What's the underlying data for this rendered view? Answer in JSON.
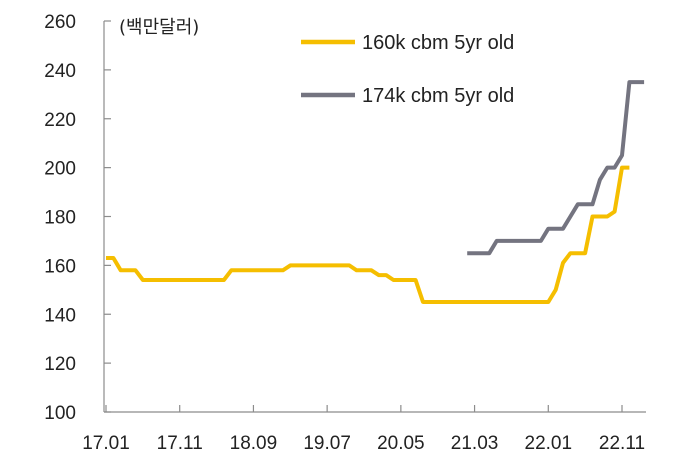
{
  "chart_data": {
    "type": "line",
    "unit_label": "(백만달러)",
    "ylim": [
      100,
      260
    ],
    "yticks": [
      100,
      120,
      140,
      160,
      180,
      200,
      220,
      240,
      260
    ],
    "xlim": [
      0,
      71
    ],
    "xticks": [
      {
        "label": "17.01",
        "at": 0
      },
      {
        "label": "17.11",
        "at": 10
      },
      {
        "label": "18.09",
        "at": 20
      },
      {
        "label": "19.07",
        "at": 30
      },
      {
        "label": "20.05",
        "at": 40
      },
      {
        "label": "21.03",
        "at": 50
      },
      {
        "label": "22.01",
        "at": 60
      },
      {
        "label": "22.11",
        "at": 70
      }
    ],
    "legend_position": "top-right",
    "grid": false,
    "series": [
      {
        "name": "160k cbm 5yr old",
        "color": "#F5BE00",
        "points": [
          [
            0,
            163
          ],
          [
            1,
            163
          ],
          [
            2,
            158
          ],
          [
            3,
            158
          ],
          [
            4,
            158
          ],
          [
            5,
            154
          ],
          [
            6,
            154
          ],
          [
            7,
            154
          ],
          [
            8,
            154
          ],
          [
            9,
            154
          ],
          [
            10,
            154
          ],
          [
            11,
            154
          ],
          [
            12,
            154
          ],
          [
            13,
            154
          ],
          [
            14,
            154
          ],
          [
            15,
            154
          ],
          [
            16,
            154
          ],
          [
            17,
            158
          ],
          [
            18,
            158
          ],
          [
            19,
            158
          ],
          [
            20,
            158
          ],
          [
            21,
            158
          ],
          [
            22,
            158
          ],
          [
            23,
            158
          ],
          [
            24,
            158
          ],
          [
            25,
            160
          ],
          [
            26,
            160
          ],
          [
            27,
            160
          ],
          [
            28,
            160
          ],
          [
            29,
            160
          ],
          [
            30,
            160
          ],
          [
            31,
            160
          ],
          [
            32,
            160
          ],
          [
            33,
            160
          ],
          [
            34,
            158
          ],
          [
            35,
            158
          ],
          [
            36,
            158
          ],
          [
            37,
            156
          ],
          [
            38,
            156
          ],
          [
            39,
            154
          ],
          [
            40,
            154
          ],
          [
            41,
            154
          ],
          [
            42,
            154
          ],
          [
            43,
            145
          ],
          [
            44,
            145
          ],
          [
            45,
            145
          ],
          [
            46,
            145
          ],
          [
            47,
            145
          ],
          [
            48,
            145
          ],
          [
            49,
            145
          ],
          [
            50,
            145
          ],
          [
            51,
            145
          ],
          [
            52,
            145
          ],
          [
            53,
            145
          ],
          [
            54,
            145
          ],
          [
            55,
            145
          ],
          [
            56,
            145
          ],
          [
            57,
            145
          ],
          [
            58,
            145
          ],
          [
            59,
            145
          ],
          [
            60,
            145
          ],
          [
            61,
            150
          ],
          [
            62,
            161
          ],
          [
            63,
            165
          ],
          [
            64,
            165
          ],
          [
            65,
            165
          ],
          [
            66,
            180
          ],
          [
            67,
            180
          ],
          [
            68,
            180
          ],
          [
            69,
            182
          ],
          [
            70,
            200
          ],
          [
            71,
            200
          ]
        ]
      },
      {
        "name": "174k cbm 5yr old",
        "color": "#747480",
        "points": [
          [
            49,
            165
          ],
          [
            50,
            165
          ],
          [
            51,
            165
          ],
          [
            52,
            165
          ],
          [
            53,
            170
          ],
          [
            54,
            170
          ],
          [
            55,
            170
          ],
          [
            56,
            170
          ],
          [
            57,
            170
          ],
          [
            58,
            170
          ],
          [
            59,
            170
          ],
          [
            60,
            175
          ],
          [
            61,
            175
          ],
          [
            62,
            175
          ],
          [
            63,
            180
          ],
          [
            64,
            185
          ],
          [
            65,
            185
          ],
          [
            66,
            185
          ],
          [
            67,
            195
          ],
          [
            68,
            200
          ],
          [
            69,
            200
          ],
          [
            70,
            205
          ],
          [
            71,
            235
          ],
          [
            72,
            235
          ],
          [
            73,
            235
          ]
        ]
      }
    ]
  }
}
